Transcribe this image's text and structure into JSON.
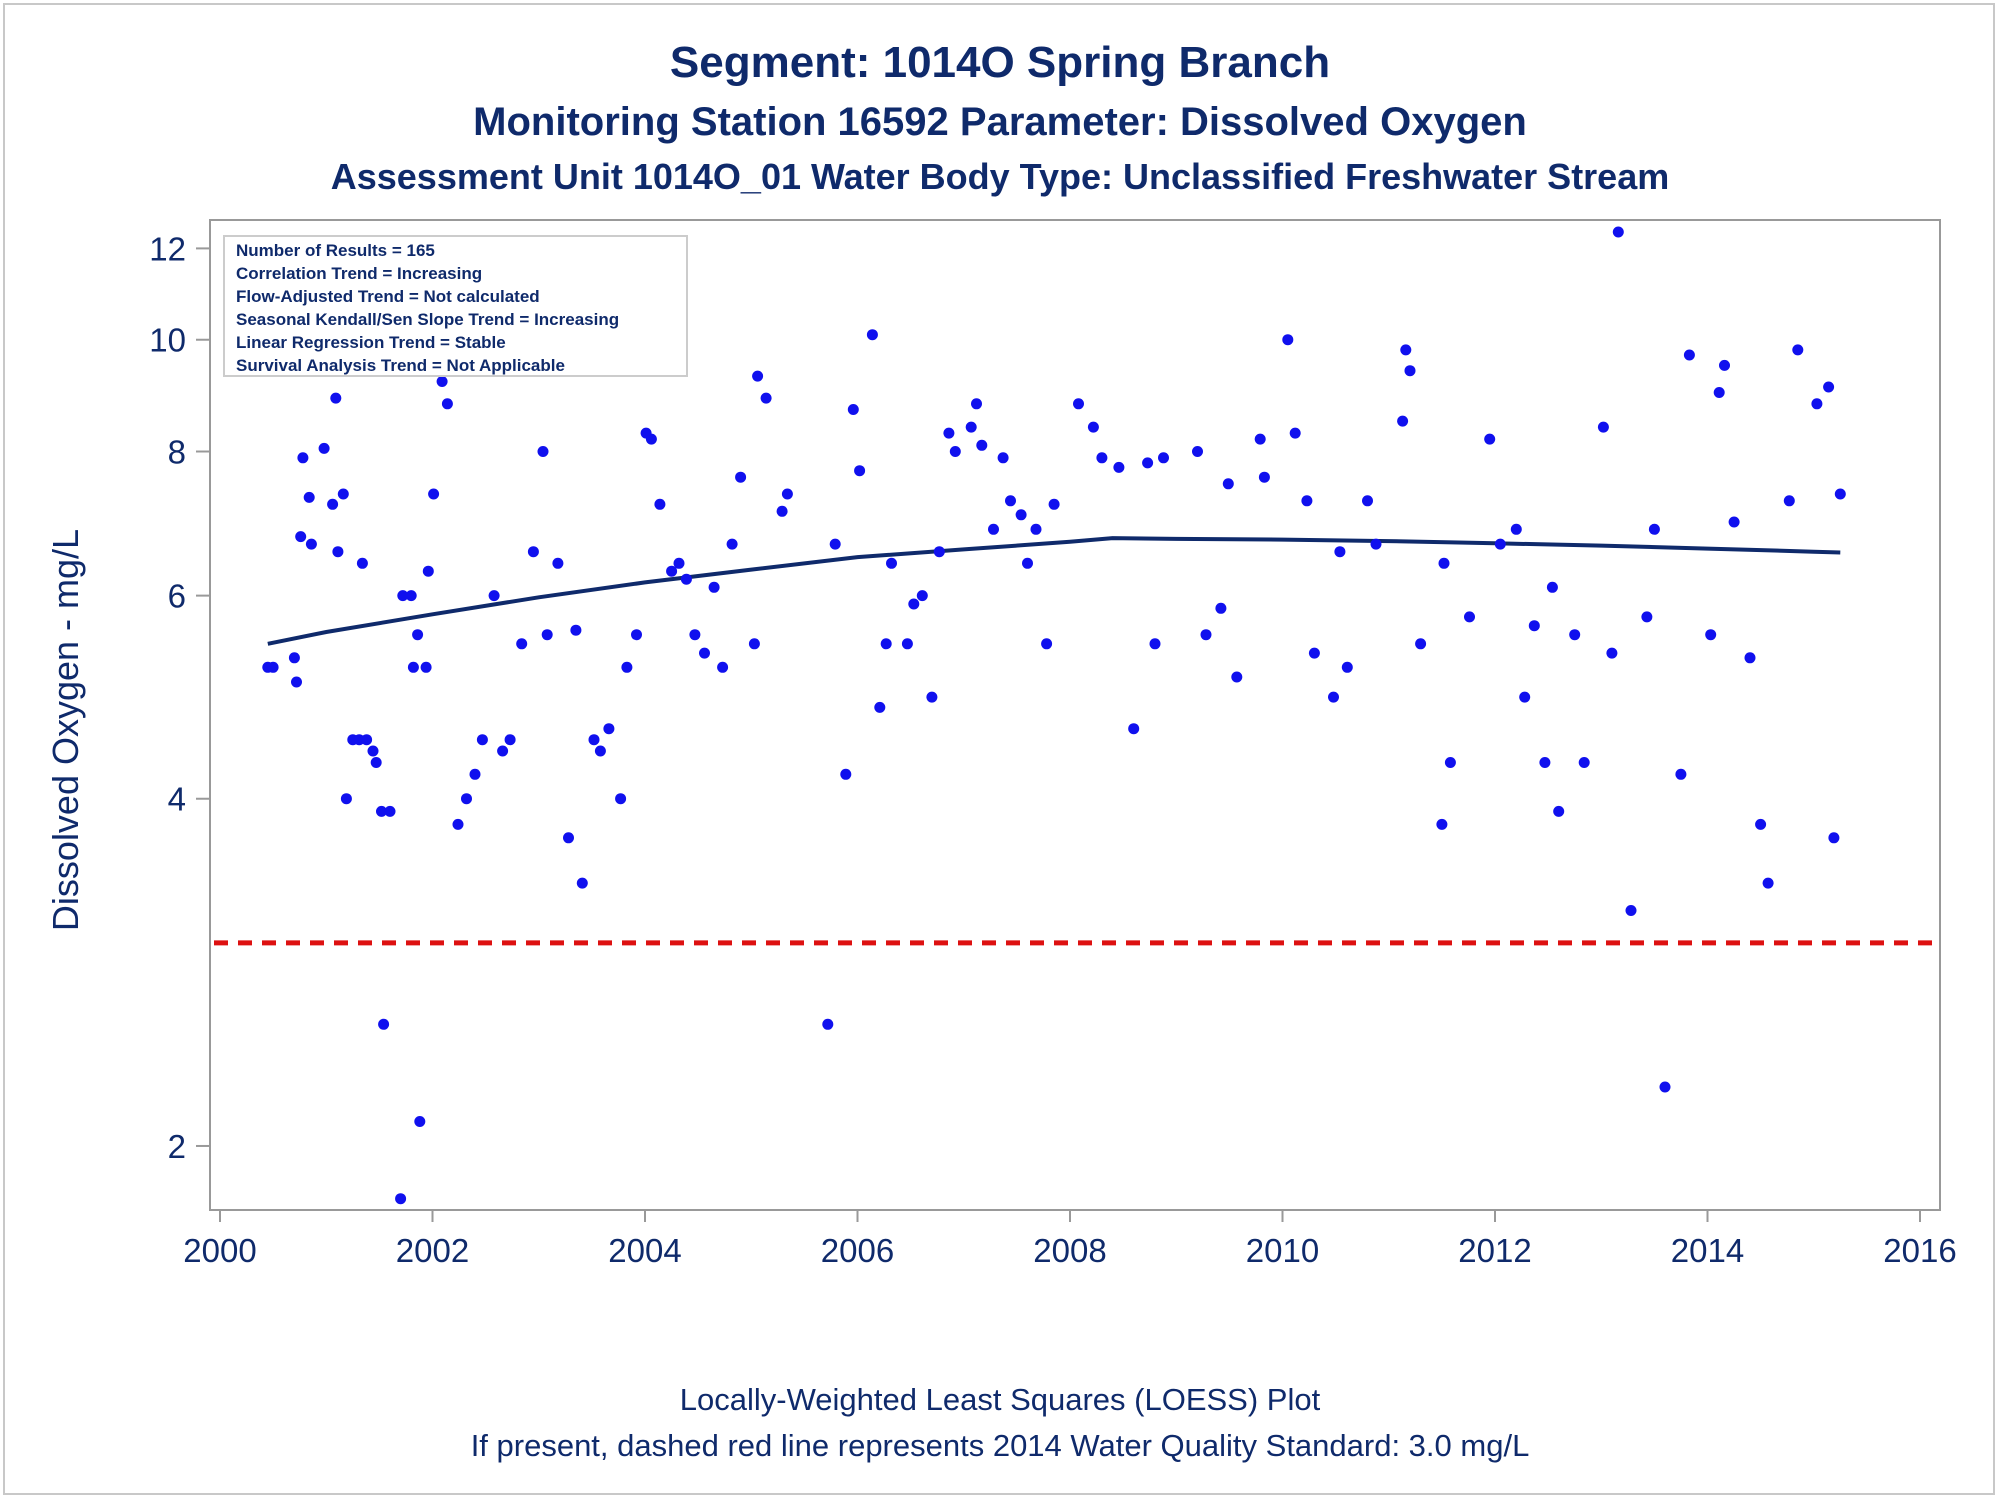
{
  "titles": {
    "line1": "Segment: 1014O  Spring Branch",
    "line2": "Monitoring Station 16592 Parameter: Dissolved Oxygen",
    "line3": "Assessment Unit 1014O_01   Water Body Type: Unclassified Freshwater Stream"
  },
  "footer": {
    "line1": "Locally-Weighted Least Squares (LOESS) Plot",
    "line2": "If present, dashed red line represents 2014 Water Quality Standard: 3.0 mg/L"
  },
  "info_box": [
    "Number of Results = 165",
    "Correlation Trend = Increasing",
    "Flow-Adjusted Trend = Not calculated",
    "Seasonal Kendall/Sen Slope Trend = Increasing",
    "Linear Regression Trend = Stable",
    "Survival Analysis Trend = Not Applicable"
  ],
  "colors": {
    "points": "#1010ee",
    "loess": "#0f2a6b",
    "standard_line": "#dd1111",
    "text": "#0f2a6b",
    "axis": "#999999"
  },
  "chart_data": {
    "type": "scatter",
    "title": "Segment: 1014O  Spring Branch",
    "xlabel": "",
    "ylabel": "Dissolved Oxygen - mg/L",
    "x_ticks": [
      2000,
      2002,
      2004,
      2006,
      2008,
      2010,
      2012,
      2014,
      2016
    ],
    "y_ticks": [
      2,
      4,
      6,
      8,
      10,
      12
    ],
    "y_scale": "log",
    "xlim": [
      2000,
      2016.1
    ],
    "ylim": [
      1.76,
      12.7
    ],
    "standard": 3.0,
    "points": [
      [
        2000.45,
        5.2
      ],
      [
        2000.5,
        5.2
      ],
      [
        2000.7,
        5.3
      ],
      [
        2000.72,
        5.05
      ],
      [
        2000.76,
        6.75
      ],
      [
        2000.78,
        7.9
      ],
      [
        2000.84,
        7.3
      ],
      [
        2000.86,
        6.65
      ],
      [
        2000.95,
        10.9
      ],
      [
        2000.98,
        8.05
      ],
      [
        2001.02,
        9.7
      ],
      [
        2001.06,
        7.2
      ],
      [
        2001.09,
        8.9
      ],
      [
        2001.11,
        6.55
      ],
      [
        2001.16,
        7.35
      ],
      [
        2001.19,
        4.0
      ],
      [
        2001.25,
        4.5
      ],
      [
        2001.31,
        4.5
      ],
      [
        2001.34,
        6.4
      ],
      [
        2001.38,
        4.5
      ],
      [
        2001.44,
        4.4
      ],
      [
        2001.47,
        4.3
      ],
      [
        2001.52,
        3.9
      ],
      [
        2001.54,
        2.55
      ],
      [
        2001.6,
        3.9
      ],
      [
        2001.7,
        1.8
      ],
      [
        2001.72,
        6.0
      ],
      [
        2001.8,
        6.0
      ],
      [
        2001.82,
        5.2
      ],
      [
        2001.86,
        5.55
      ],
      [
        2001.88,
        2.1
      ],
      [
        2001.94,
        5.2
      ],
      [
        2001.96,
        6.3
      ],
      [
        2002.01,
        7.35
      ],
      [
        2002.09,
        9.2
      ],
      [
        2002.14,
        8.8
      ],
      [
        2002.24,
        3.8
      ],
      [
        2002.32,
        4.0
      ],
      [
        2002.4,
        4.2
      ],
      [
        2002.47,
        4.5
      ],
      [
        2002.58,
        6.0
      ],
      [
        2002.66,
        4.4
      ],
      [
        2002.73,
        4.5
      ],
      [
        2002.84,
        5.45
      ],
      [
        2002.95,
        6.55
      ],
      [
        2003.04,
        8.0
      ],
      [
        2003.08,
        5.55
      ],
      [
        2003.18,
        6.4
      ],
      [
        2003.28,
        3.7
      ],
      [
        2003.35,
        5.6
      ],
      [
        2003.41,
        3.38
      ],
      [
        2003.52,
        4.5
      ],
      [
        2003.58,
        4.4
      ],
      [
        2003.66,
        4.6
      ],
      [
        2003.77,
        4.0
      ],
      [
        2003.83,
        5.2
      ],
      [
        2003.92,
        5.55
      ],
      [
        2004.01,
        8.3
      ],
      [
        2004.06,
        8.2
      ],
      [
        2004.14,
        7.2
      ],
      [
        2004.25,
        6.3
      ],
      [
        2004.32,
        6.4
      ],
      [
        2004.39,
        6.2
      ],
      [
        2004.47,
        5.55
      ],
      [
        2004.56,
        5.35
      ],
      [
        2004.65,
        6.1
      ],
      [
        2004.73,
        5.2
      ],
      [
        2004.82,
        6.65
      ],
      [
        2004.9,
        7.6
      ],
      [
        2005.03,
        5.45
      ],
      [
        2005.06,
        9.3
      ],
      [
        2005.14,
        8.9
      ],
      [
        2005.29,
        7.1
      ],
      [
        2005.34,
        7.35
      ],
      [
        2005.72,
        2.55
      ],
      [
        2005.79,
        6.65
      ],
      [
        2005.89,
        4.2
      ],
      [
        2005.96,
        8.7
      ],
      [
        2006.02,
        7.7
      ],
      [
        2006.14,
        10.1
      ],
      [
        2006.21,
        4.8
      ],
      [
        2006.27,
        5.45
      ],
      [
        2006.32,
        6.4
      ],
      [
        2006.47,
        5.45
      ],
      [
        2006.53,
        5.9
      ],
      [
        2006.61,
        6.0
      ],
      [
        2006.7,
        4.9
      ],
      [
        2006.77,
        6.55
      ],
      [
        2006.86,
        8.3
      ],
      [
        2006.92,
        8.0
      ],
      [
        2007.07,
        8.4
      ],
      [
        2007.12,
        8.8
      ],
      [
        2007.17,
        8.1
      ],
      [
        2007.28,
        6.85
      ],
      [
        2007.37,
        7.9
      ],
      [
        2007.44,
        7.25
      ],
      [
        2007.54,
        7.05
      ],
      [
        2007.6,
        6.4
      ],
      [
        2007.68,
        6.85
      ],
      [
        2007.78,
        5.45
      ],
      [
        2007.85,
        7.2
      ],
      [
        2008.08,
        8.8
      ],
      [
        2008.22,
        8.4
      ],
      [
        2008.3,
        7.9
      ],
      [
        2008.46,
        7.75
      ],
      [
        2008.6,
        4.6
      ],
      [
        2008.73,
        7.82
      ],
      [
        2008.8,
        5.45
      ],
      [
        2008.88,
        7.9
      ],
      [
        2009.2,
        8.0
      ],
      [
        2009.28,
        5.55
      ],
      [
        2009.42,
        5.85
      ],
      [
        2009.49,
        7.5
      ],
      [
        2009.57,
        5.1
      ],
      [
        2009.79,
        8.2
      ],
      [
        2009.83,
        7.6
      ],
      [
        2010.05,
        10.0
      ],
      [
        2010.12,
        8.3
      ],
      [
        2010.23,
        7.25
      ],
      [
        2010.3,
        5.35
      ],
      [
        2010.48,
        4.9
      ],
      [
        2010.54,
        6.55
      ],
      [
        2010.61,
        5.2
      ],
      [
        2010.8,
        7.25
      ],
      [
        2010.88,
        6.65
      ],
      [
        2011.13,
        8.5
      ],
      [
        2011.16,
        9.8
      ],
      [
        2011.2,
        9.4
      ],
      [
        2011.3,
        5.45
      ],
      [
        2011.5,
        3.8
      ],
      [
        2011.52,
        6.4
      ],
      [
        2011.58,
        4.3
      ],
      [
        2011.76,
        5.75
      ],
      [
        2011.95,
        8.2
      ],
      [
        2012.05,
        6.65
      ],
      [
        2012.2,
        6.85
      ],
      [
        2012.28,
        4.9
      ],
      [
        2012.37,
        5.65
      ],
      [
        2012.47,
        4.3
      ],
      [
        2012.54,
        6.1
      ],
      [
        2012.6,
        3.9
      ],
      [
        2012.75,
        5.55
      ],
      [
        2012.84,
        4.3
      ],
      [
        2013.02,
        8.4
      ],
      [
        2013.1,
        5.35
      ],
      [
        2013.16,
        12.4
      ],
      [
        2013.28,
        3.2
      ],
      [
        2013.43,
        5.75
      ],
      [
        2013.5,
        6.85
      ],
      [
        2013.6,
        2.25
      ],
      [
        2013.75,
        4.2
      ],
      [
        2013.83,
        9.7
      ],
      [
        2014.03,
        5.55
      ],
      [
        2014.11,
        9.0
      ],
      [
        2014.16,
        9.5
      ],
      [
        2014.25,
        6.95
      ],
      [
        2014.4,
        5.3
      ],
      [
        2014.5,
        3.8
      ],
      [
        2014.57,
        3.38
      ],
      [
        2014.77,
        7.25
      ],
      [
        2014.85,
        9.8
      ],
      [
        2015.03,
        8.8
      ],
      [
        2015.14,
        9.1
      ],
      [
        2015.19,
        3.7
      ],
      [
        2015.25,
        7.35
      ]
    ],
    "loess": [
      [
        2000.45,
        5.45
      ],
      [
        2001.0,
        5.58
      ],
      [
        2002.0,
        5.78
      ],
      [
        2003.0,
        5.98
      ],
      [
        2004.0,
        6.16
      ],
      [
        2005.0,
        6.32
      ],
      [
        2006.0,
        6.48
      ],
      [
        2007.0,
        6.58
      ],
      [
        2008.0,
        6.68
      ],
      [
        2008.4,
        6.73
      ],
      [
        2009.0,
        6.72
      ],
      [
        2010.0,
        6.71
      ],
      [
        2011.0,
        6.69
      ],
      [
        2012.0,
        6.66
      ],
      [
        2013.0,
        6.63
      ],
      [
        2014.0,
        6.59
      ],
      [
        2015.0,
        6.55
      ],
      [
        2015.25,
        6.54
      ]
    ]
  }
}
